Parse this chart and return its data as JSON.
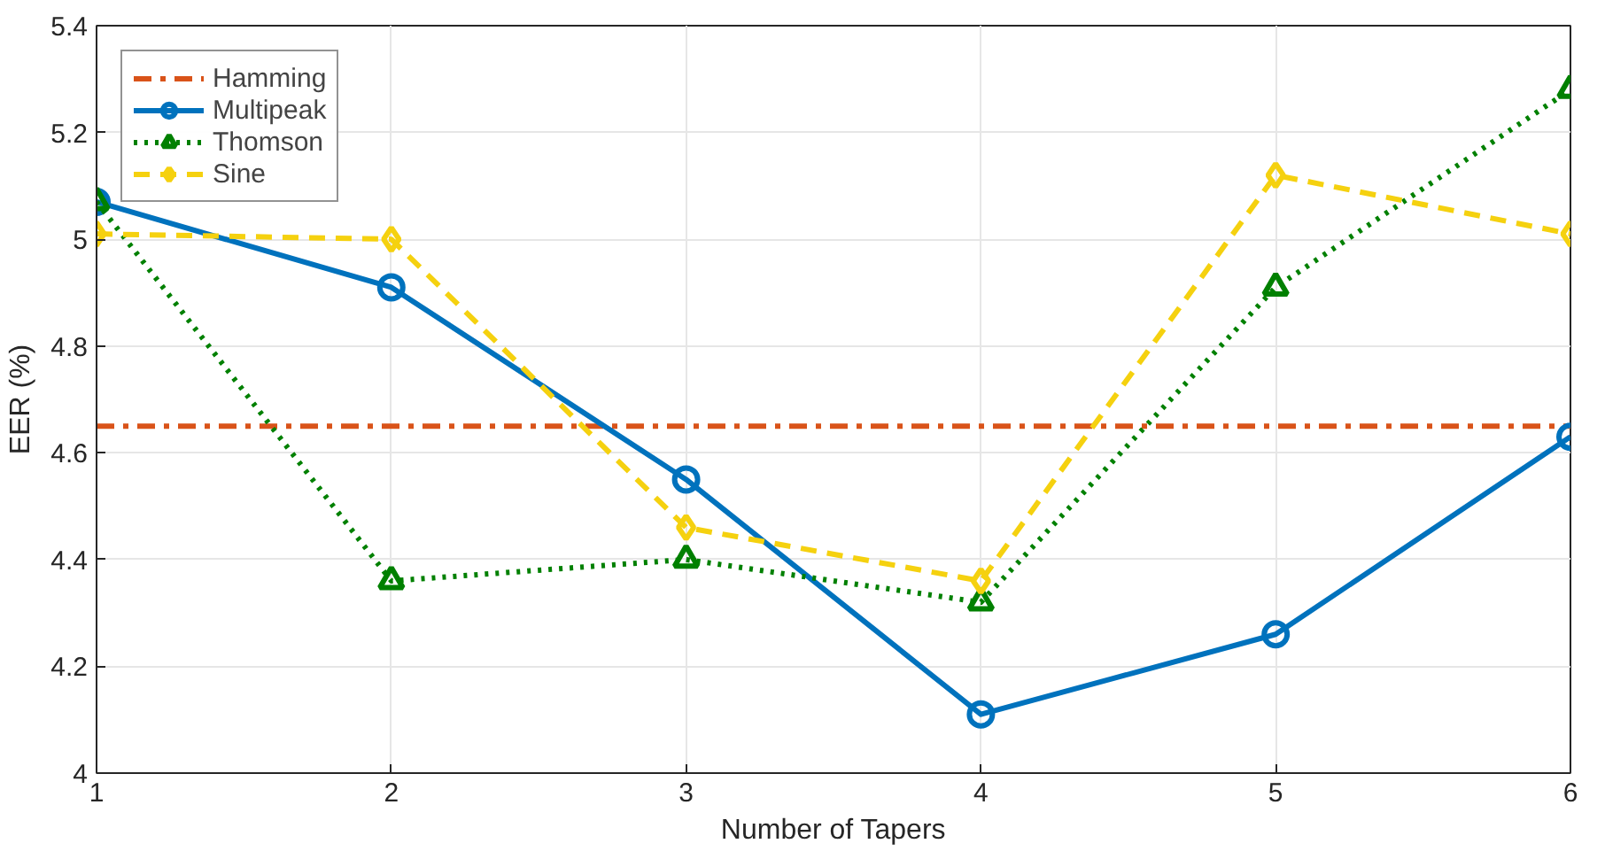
{
  "chart_data": {
    "type": "line",
    "xlabel": "Number of Tapers",
    "ylabel": "EER (%)",
    "x": [
      1,
      2,
      3,
      4,
      5,
      6
    ],
    "series": [
      {
        "name": "Hamming",
        "color": "#d95319",
        "line_style": "dashdot",
        "marker": "none",
        "values": [
          4.65,
          4.65,
          4.65,
          4.65,
          4.65,
          4.65
        ]
      },
      {
        "name": "Multipeak",
        "color": "#0072bd",
        "line_style": "solid",
        "marker": "circle",
        "values": [
          5.07,
          4.91,
          4.55,
          4.11,
          4.26,
          4.63
        ]
      },
      {
        "name": "Thomson",
        "color": "#008000",
        "line_style": "dotted",
        "marker": "triangle",
        "values": [
          5.07,
          4.36,
          4.4,
          4.32,
          4.91,
          5.28
        ]
      },
      {
        "name": "Sine",
        "color": "#f5d10f",
        "line_style": "dashed",
        "marker": "diamond",
        "values": [
          5.01,
          5.0,
          4.46,
          4.36,
          5.12,
          5.01
        ]
      }
    ],
    "xlim": [
      1,
      6
    ],
    "xticks": [
      1,
      2,
      3,
      4,
      5,
      6
    ],
    "ylim": [
      4,
      5.4
    ],
    "yticks": [
      4,
      4.2,
      4.4,
      4.6,
      4.8,
      5,
      5.2,
      5.4
    ],
    "grid": true,
    "legend": "top left"
  }
}
